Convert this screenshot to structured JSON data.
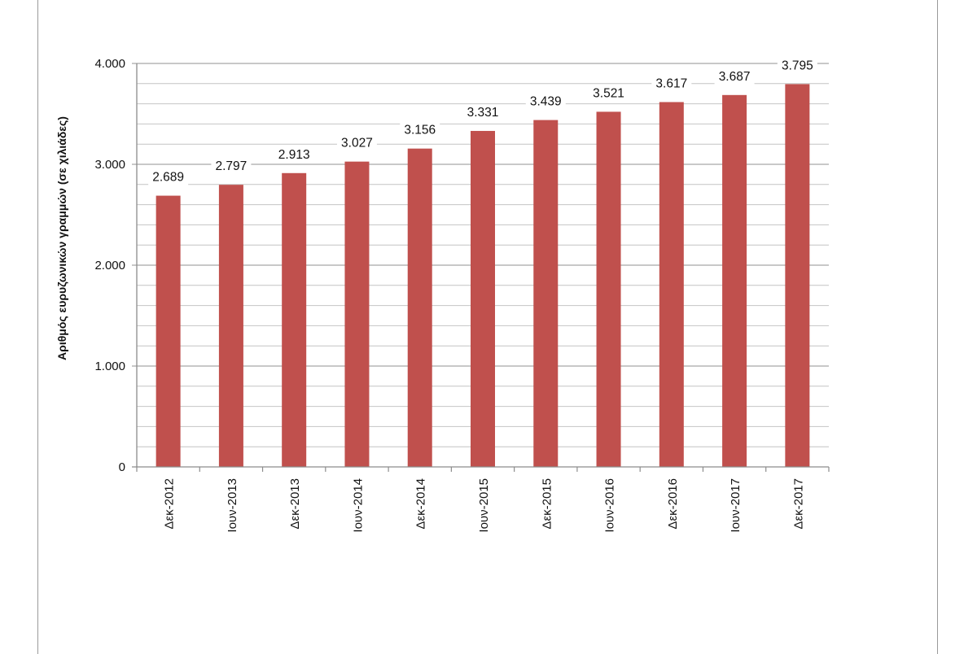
{
  "chart_data": {
    "type": "bar",
    "categories": [
      "Δεκ-2012",
      "Ιουν-2013",
      "Δεκ-2013",
      "Ιουν-2014",
      "Δεκ-2014",
      "Ιουν-2015",
      "Δεκ-2015",
      "Ιουν-2016",
      "Δεκ-2016",
      "Ιουν-2017",
      "Δεκ-2017"
    ],
    "values": [
      2689,
      2797,
      2913,
      3027,
      3156,
      3331,
      3439,
      3521,
      3617,
      3687,
      3795
    ],
    "data_labels": [
      "2.689",
      "2.797",
      "2.913",
      "3.027",
      "3.156",
      "3.331",
      "3.439",
      "3.521",
      "3.617",
      "3.687",
      "3.795"
    ],
    "title": "",
    "xlabel": "",
    "ylabel": "Αριθμός ευρυζωνικών γραμμών (σε χιλιάδες)",
    "ylim": [
      0,
      4000
    ],
    "yticks": [
      0,
      1000,
      2000,
      3000,
      4000
    ],
    "ytick_labels": [
      "0",
      "1.000",
      "2.000",
      "3.000",
      "4.000"
    ],
    "minor_gridline_step": 200,
    "grid": true,
    "legend": "none",
    "bar_color": "#c0504d",
    "grid_color": "#a6a6a6"
  }
}
